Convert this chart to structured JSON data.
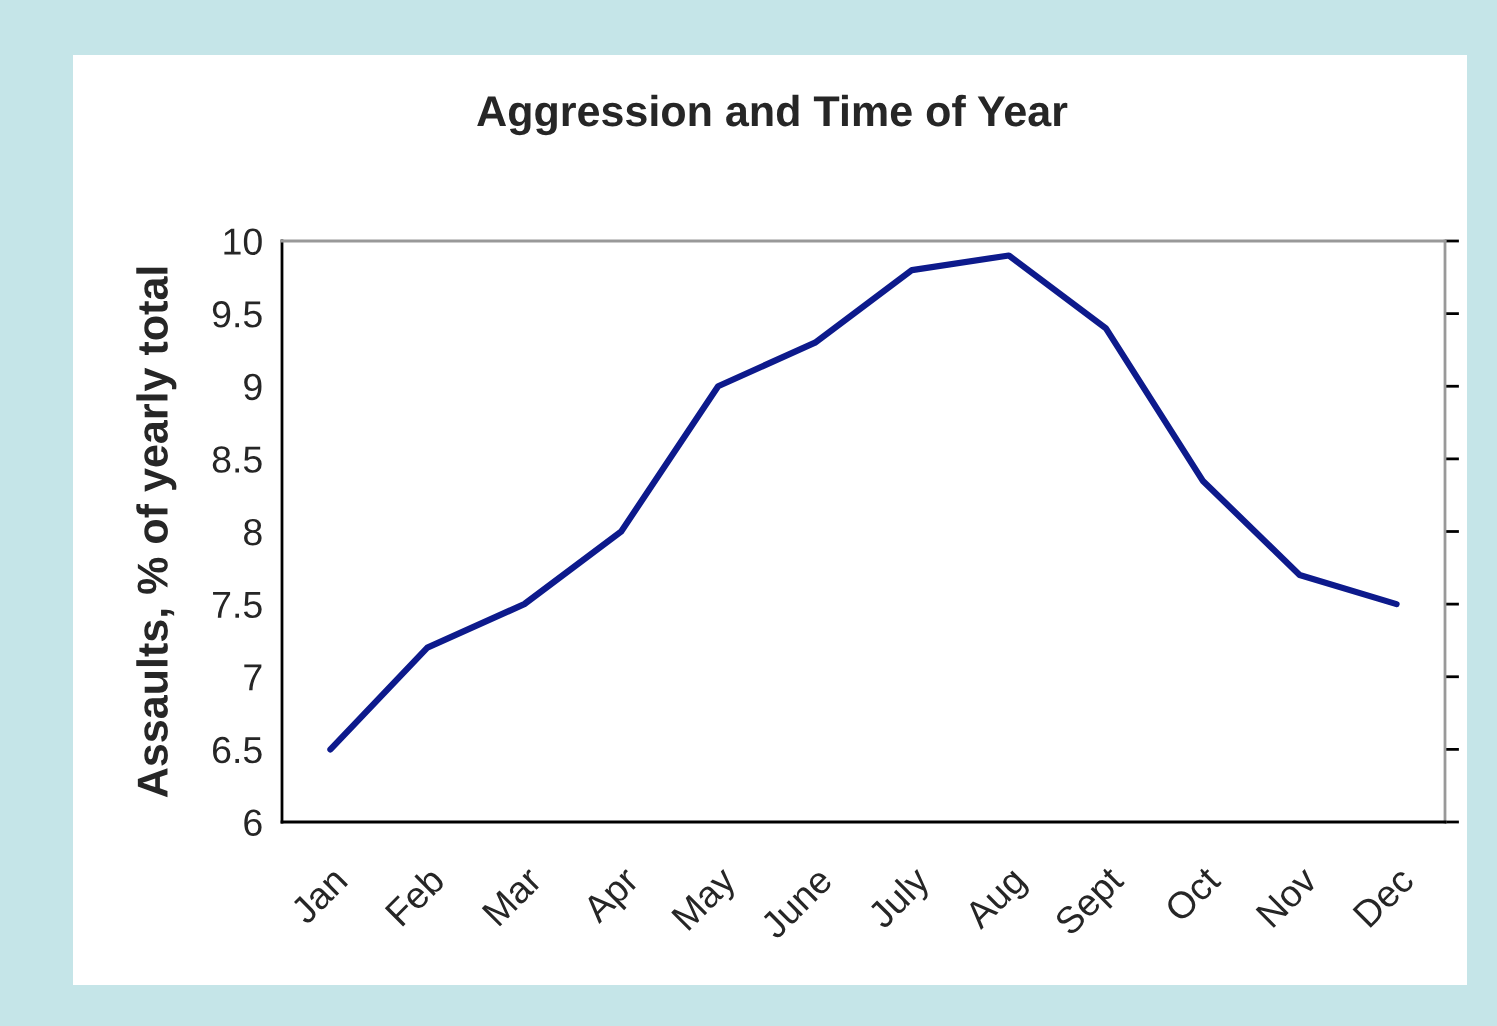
{
  "chart_data": {
    "type": "line",
    "title": "Aggression and Time of Year",
    "ylabel": "Assaults, % of yearly total",
    "categories": [
      "Jan",
      "Feb",
      "Mar",
      "Apr",
      "May",
      "June",
      "July",
      "Aug",
      "Sept",
      "Oct",
      "Nov",
      "Dec"
    ],
    "series": [
      {
        "color": "#0d1a8c",
        "values": [
          6.5,
          7.2,
          7.5,
          8.0,
          9.0,
          9.3,
          9.8,
          9.9,
          9.4,
          8.35,
          7.7,
          7.5
        ]
      }
    ],
    "ylim": [
      6,
      10
    ],
    "yticks": [
      6,
      6.5,
      7,
      7.5,
      8,
      8.5,
      9,
      9.5,
      10
    ],
    "grid": false,
    "legend": false,
    "marker": "none",
    "line_style": "solid"
  }
}
